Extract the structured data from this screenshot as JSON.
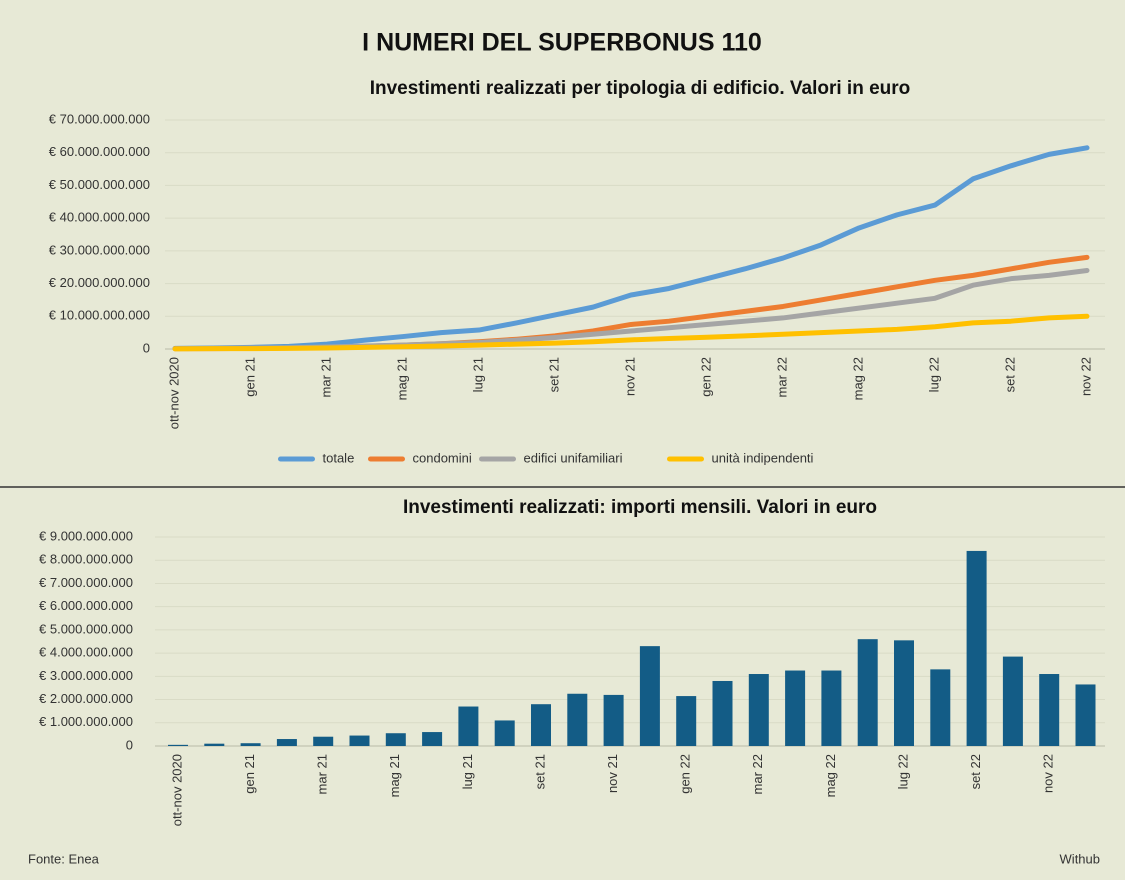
{
  "title": "I NUMERI DEL SUPERBONUS 110",
  "source": "Fonte: Enea",
  "credit": "Withub",
  "chart_data": [
    {
      "type": "line",
      "title": "Investimenti realizzati per tipologia di edificio. Valori in euro",
      "categories": [
        "ott-nov 2020",
        null,
        "gen 21",
        null,
        "mar 21",
        null,
        "mag 21",
        null,
        "lug 21",
        null,
        "set 21",
        null,
        "nov 21",
        null,
        "gen 22",
        null,
        "mar 22",
        null,
        "mag 22",
        null,
        "lug 22",
        null,
        "set 22",
        null,
        "nov 22"
      ],
      "series": [
        {
          "name": "totale",
          "color": "#5b9bd5",
          "values": [
            200000000,
            300000000,
            500000000,
            800000000,
            1500000000,
            2700000000,
            3800000000,
            5000000000,
            5800000000,
            8000000000,
            10400000000,
            12800000000,
            16500000000,
            18500000000,
            21500000000,
            24500000000,
            27800000000,
            31800000000,
            37000000000,
            41000000000,
            44000000000,
            52000000000,
            56000000000,
            59500000000,
            61500000000
          ]
        },
        {
          "name": "condomini",
          "color": "#ed7d31",
          "values": [
            100000000,
            100000000,
            200000000,
            300000000,
            500000000,
            800000000,
            1200000000,
            1600000000,
            2200000000,
            3000000000,
            4000000000,
            5500000000,
            7500000000,
            8500000000,
            10000000000,
            11500000000,
            13000000000,
            15000000000,
            17000000000,
            19000000000,
            21000000000,
            22500000000,
            24500000000,
            26500000000,
            28000000000
          ]
        },
        {
          "name": "edifici unifamiliari",
          "color": "#a5a5a5",
          "values": [
            100000000,
            200000000,
            300000000,
            400000000,
            600000000,
            900000000,
            1200000000,
            1600000000,
            2000000000,
            2700000000,
            3500000000,
            4500000000,
            5500000000,
            6500000000,
            7500000000,
            8500000000,
            9500000000,
            11000000000,
            12500000000,
            14000000000,
            15500000000,
            19500000000,
            21500000000,
            22500000000,
            24000000000
          ]
        },
        {
          "name": "unità indipendenti",
          "color": "#ffc000",
          "values": [
            50000000,
            100000000,
            100000000,
            200000000,
            300000000,
            500000000,
            700000000,
            900000000,
            1200000000,
            1500000000,
            1800000000,
            2200000000,
            2800000000,
            3200000000,
            3600000000,
            4000000000,
            4500000000,
            5000000000,
            5500000000,
            6000000000,
            6800000000,
            8000000000,
            8500000000,
            9500000000,
            10000000000
          ]
        }
      ],
      "ylim": [
        0,
        70000000000
      ],
      "yticks": [
        0,
        {
          "value": 10000000000,
          "label": "€ 10.000.000.000"
        },
        {
          "value": 20000000000,
          "label": "€ 20.000.000.000"
        },
        {
          "value": 30000000000,
          "label": "€ 30.000.000.000"
        },
        {
          "value": 40000000000,
          "label": "€ 40.000.000.000"
        },
        {
          "value": 50000000000,
          "label": "€ 50.000.000.000"
        },
        {
          "value": 60000000000,
          "label": "€ 60.000.000.000"
        },
        {
          "value": 70000000000,
          "label": "€ 70.000.000.000"
        }
      ],
      "grid": true,
      "legend": "bottom"
    },
    {
      "type": "bar",
      "title": "Investimenti realizzati: importi mensili. Valori in euro",
      "categories": [
        "ott-nov 2020",
        null,
        "gen 21",
        null,
        "mar 21",
        null,
        "mag 21",
        null,
        "lug 21",
        null,
        "set 21",
        null,
        "nov 21",
        null,
        "gen 22",
        null,
        "mar 22",
        null,
        "mag 22",
        null,
        "lug 22",
        null,
        "set 22",
        null,
        "nov 22",
        null
      ],
      "values": [
        50000000,
        100000000,
        120000000,
        300000000,
        400000000,
        450000000,
        550000000,
        600000000,
        1700000000,
        1100000000,
        1800000000,
        2250000000,
        2200000000,
        4300000000,
        2150000000,
        2800000000,
        3100000000,
        3250000000,
        3250000000,
        4600000000,
        4550000000,
        3300000000,
        8400000000,
        3850000000,
        3100000000,
        2650000000
      ],
      "color": "#135c86",
      "ylim": [
        0,
        9000000000
      ],
      "yticks": [
        0,
        {
          "value": 1000000000,
          "label": "€ 1.000.000.000"
        },
        {
          "value": 2000000000,
          "label": "€ 2.000.000.000"
        },
        {
          "value": 3000000000,
          "label": "€ 3.000.000.000"
        },
        {
          "value": 4000000000,
          "label": "€ 4.000.000.000"
        },
        {
          "value": 5000000000,
          "label": "€ 5.000.000.000"
        },
        {
          "value": 6000000000,
          "label": "€ 6.000.000.000"
        },
        {
          "value": 7000000000,
          "label": "€ 7.000.000.000"
        },
        {
          "value": 8000000000,
          "label": "€ 8.000.000.000"
        },
        {
          "value": 9000000000,
          "label": "€ 9.000.000.000"
        }
      ],
      "grid": true
    }
  ]
}
